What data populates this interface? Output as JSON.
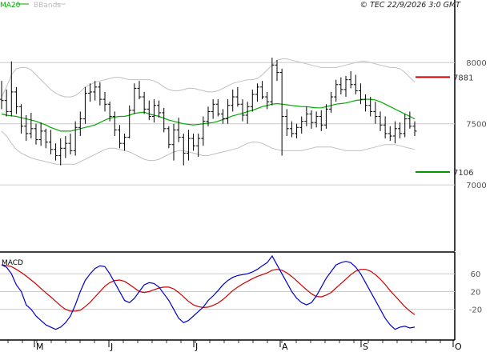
{
  "header": {
    "legend_ma": "MA20",
    "legend_bb": "BBands",
    "copyright": "© TEC 22/9/2026 3:0 GMT"
  },
  "colors": {
    "price_bars": "#000000",
    "ma20": "#00aa00",
    "bbands": "#c0c0c0",
    "macd": "#0000cc",
    "signal": "#cc0000",
    "resistance": "#cc0000",
    "support": "#009900",
    "grid": "#cccccc"
  },
  "chart_data": [
    {
      "type": "line",
      "subtype": "ohlc",
      "title": "",
      "y_ticks": [
        "8000",
        "7500",
        "7000"
      ],
      "ylim": [
        6550,
        8250
      ],
      "x_tick_labels": [
        "M",
        "J",
        "J",
        "A",
        "S",
        "O"
      ],
      "levels": [
        {
          "label": "7881",
          "value": 7881,
          "color": "#cc0000"
        },
        {
          "label": "7106",
          "value": 7106,
          "color": "#009900"
        }
      ],
      "ohlc": [
        [
          7700,
          7850,
          7620,
          7690
        ],
        [
          7690,
          7780,
          7560,
          7600
        ],
        [
          7600,
          8010,
          7560,
          7760
        ],
        [
          7760,
          7800,
          7580,
          7640
        ],
        [
          7640,
          7660,
          7420,
          7480
        ],
        [
          7480,
          7570,
          7360,
          7420
        ],
        [
          7420,
          7590,
          7380,
          7460
        ],
        [
          7460,
          7500,
          7330,
          7370
        ],
        [
          7370,
          7510,
          7320,
          7440
        ],
        [
          7440,
          7460,
          7300,
          7350
        ],
        [
          7350,
          7450,
          7250,
          7290
        ],
        [
          7290,
          7340,
          7200,
          7240
        ],
        [
          7240,
          7380,
          7160,
          7300
        ],
        [
          7300,
          7400,
          7220,
          7340
        ],
        [
          7340,
          7420,
          7250,
          7280
        ],
        [
          7280,
          7520,
          7240,
          7470
        ],
        [
          7470,
          7600,
          7400,
          7540
        ],
        [
          7540,
          7800,
          7500,
          7750
        ],
        [
          7750,
          7830,
          7680,
          7760
        ],
        [
          7760,
          7850,
          7690,
          7800
        ],
        [
          7800,
          7840,
          7650,
          7700
        ],
        [
          7700,
          7760,
          7600,
          7660
        ],
        [
          7660,
          7680,
          7520,
          7560
        ],
        [
          7560,
          7600,
          7400,
          7450
        ],
        [
          7450,
          7490,
          7300,
          7340
        ],
        [
          7340,
          7420,
          7280,
          7390
        ],
        [
          7390,
          7650,
          7380,
          7610
        ],
        [
          7610,
          7830,
          7580,
          7790
        ],
        [
          7790,
          7850,
          7700,
          7720
        ],
        [
          7720,
          7760,
          7580,
          7620
        ],
        [
          7620,
          7690,
          7530,
          7560
        ],
        [
          7560,
          7700,
          7510,
          7650
        ],
        [
          7650,
          7690,
          7550,
          7590
        ],
        [
          7590,
          7630,
          7430,
          7460
        ],
        [
          7460,
          7480,
          7300,
          7330
        ],
        [
          7330,
          7500,
          7200,
          7450
        ],
        [
          7450,
          7550,
          7350,
          7390
        ],
        [
          7390,
          7420,
          7160,
          7260
        ],
        [
          7260,
          7450,
          7200,
          7380
        ],
        [
          7380,
          7420,
          7280,
          7320
        ],
        [
          7320,
          7420,
          7230,
          7380
        ],
        [
          7380,
          7560,
          7320,
          7520
        ],
        [
          7520,
          7640,
          7480,
          7600
        ],
        [
          7600,
          7700,
          7540,
          7660
        ],
        [
          7660,
          7700,
          7560,
          7580
        ],
        [
          7580,
          7620,
          7500,
          7540
        ],
        [
          7540,
          7700,
          7500,
          7650
        ],
        [
          7650,
          7780,
          7600,
          7720
        ],
        [
          7720,
          7800,
          7640,
          7660
        ],
        [
          7660,
          7700,
          7520,
          7570
        ],
        [
          7570,
          7680,
          7500,
          7640
        ],
        [
          7640,
          7780,
          7600,
          7740
        ],
        [
          7740,
          7830,
          7680,
          7800
        ],
        [
          7800,
          7850,
          7700,
          7720
        ],
        [
          7720,
          7760,
          7620,
          7680
        ],
        [
          7680,
          8040,
          7650,
          7980
        ],
        [
          7980,
          8020,
          7850,
          7920
        ],
        [
          7920,
          7950,
          7240,
          7560
        ],
        [
          7560,
          7620,
          7400,
          7460
        ],
        [
          7460,
          7520,
          7390,
          7420
        ],
        [
          7420,
          7500,
          7380,
          7470
        ],
        [
          7470,
          7560,
          7420,
          7520
        ],
        [
          7520,
          7640,
          7480,
          7580
        ],
        [
          7580,
          7610,
          7460,
          7510
        ],
        [
          7510,
          7600,
          7470,
          7560
        ],
        [
          7560,
          7610,
          7440,
          7490
        ],
        [
          7490,
          7660,
          7460,
          7620
        ],
        [
          7620,
          7760,
          7590,
          7720
        ],
        [
          7720,
          7860,
          7680,
          7820
        ],
        [
          7820,
          7880,
          7740,
          7780
        ],
        [
          7780,
          7890,
          7720,
          7860
        ],
        [
          7860,
          7930,
          7790,
          7820
        ],
        [
          7820,
          7900,
          7740,
          7770
        ],
        [
          7770,
          7830,
          7660,
          7700
        ],
        [
          7700,
          7740,
          7600,
          7650
        ],
        [
          7650,
          7720,
          7560,
          7600
        ],
        [
          7600,
          7680,
          7500,
          7560
        ],
        [
          7560,
          7600,
          7440,
          7490
        ],
        [
          7490,
          7560,
          7380,
          7420
        ],
        [
          7420,
          7480,
          7360,
          7400
        ],
        [
          7400,
          7520,
          7340,
          7460
        ],
        [
          7460,
          7510,
          7380,
          7420
        ],
        [
          7420,
          7580,
          7390,
          7540
        ],
        [
          7540,
          7600,
          7460,
          7480
        ],
        [
          7480,
          7520,
          7400,
          7440
        ]
      ],
      "ma20": [
        7580,
        7570,
        7565,
        7560,
        7550,
        7540,
        7530,
        7520,
        7505,
        7490,
        7470,
        7455,
        7440,
        7440,
        7440,
        7450,
        7460,
        7470,
        7480,
        7490,
        7510,
        7530,
        7545,
        7555,
        7560,
        7560,
        7570,
        7585,
        7590,
        7595,
        7580,
        7570,
        7560,
        7545,
        7530,
        7520,
        7510,
        7500,
        7495,
        7490,
        7495,
        7500,
        7505,
        7510,
        7520,
        7535,
        7550,
        7565,
        7575,
        7585,
        7600,
        7610,
        7625,
        7640,
        7650,
        7660,
        7665,
        7660,
        7655,
        7650,
        7645,
        7640,
        7640,
        7635,
        7630,
        7630,
        7640,
        7650,
        7660,
        7665,
        7670,
        7680,
        7690,
        7695,
        7700,
        7700,
        7695,
        7680,
        7660,
        7640,
        7620,
        7600,
        7580,
        7560,
        7540
      ],
      "bb_upper": [
        7720,
        7800,
        7900,
        7950,
        7960,
        7960,
        7940,
        7900,
        7860,
        7820,
        7780,
        7750,
        7730,
        7720,
        7720,
        7730,
        7760,
        7800,
        7820,
        7840,
        7850,
        7860,
        7870,
        7880,
        7880,
        7870,
        7860,
        7860,
        7860,
        7860,
        7860,
        7850,
        7830,
        7800,
        7780,
        7770,
        7770,
        7780,
        7790,
        7790,
        7780,
        7770,
        7760,
        7760,
        7770,
        7790,
        7810,
        7830,
        7840,
        7850,
        7860,
        7860,
        7870,
        7900,
        7940,
        7980,
        8020,
        8030,
        8030,
        8020,
        8010,
        8000,
        7990,
        7980,
        7970,
        7960,
        7960,
        7960,
        7960,
        7970,
        7980,
        7990,
        8000,
        8010,
        8010,
        8000,
        7990,
        7980,
        7970,
        7960,
        7960,
        7950,
        7920,
        7880,
        7840
      ],
      "bb_lower": [
        7440,
        7400,
        7340,
        7290,
        7260,
        7240,
        7220,
        7210,
        7200,
        7190,
        7180,
        7170,
        7170,
        7170,
        7170,
        7170,
        7190,
        7210,
        7230,
        7250,
        7270,
        7290,
        7300,
        7300,
        7290,
        7280,
        7270,
        7250,
        7230,
        7210,
        7200,
        7200,
        7210,
        7230,
        7250,
        7270,
        7280,
        7280,
        7270,
        7260,
        7250,
        7240,
        7240,
        7250,
        7260,
        7270,
        7280,
        7290,
        7300,
        7320,
        7340,
        7350,
        7350,
        7340,
        7320,
        7300,
        7290,
        7280,
        7280,
        7280,
        7280,
        7280,
        7290,
        7300,
        7310,
        7310,
        7310,
        7310,
        7300,
        7290,
        7280,
        7280,
        7280,
        7280,
        7290,
        7300,
        7310,
        7320,
        7330,
        7330,
        7330,
        7320,
        7310,
        7300,
        7290
      ]
    },
    {
      "type": "line",
      "title": "MACD",
      "y_ticks": [
        "60",
        "20",
        "-20"
      ],
      "ylim": [
        -80,
        100
      ],
      "series": [
        {
          "values": [
            80,
            75,
            60,
            35,
            20,
            -10,
            -20,
            -35,
            -45,
            -55,
            -60,
            -65,
            -60,
            -50,
            -35,
            -10,
            20,
            45,
            60,
            72,
            78,
            76,
            60,
            40,
            20,
            0,
            -5,
            5,
            20,
            35,
            40,
            38,
            30,
            15,
            0,
            -20,
            -40,
            -50,
            -45,
            -35,
            -25,
            -15,
            0,
            10,
            22,
            35,
            45,
            52,
            56,
            58,
            60,
            64,
            70,
            78,
            85,
            100,
            80,
            60,
            40,
            20,
            5,
            -5,
            -10,
            -5,
            10,
            30,
            50,
            65,
            80,
            85,
            88,
            85,
            75,
            60,
            40,
            20,
            0,
            -20,
            -40,
            -55,
            -65,
            -60,
            -58,
            -62,
            -60
          ]
        },
        {
          "values": [
            80,
            79,
            76,
            70,
            63,
            55,
            46,
            37,
            27,
            17,
            8,
            -2,
            -12,
            -20,
            -24,
            -24,
            -22,
            -14,
            -4,
            8,
            20,
            32,
            40,
            45,
            46,
            43,
            36,
            28,
            20,
            18,
            20,
            24,
            28,
            30,
            30,
            26,
            18,
            8,
            -2,
            -10,
            -14,
            -16,
            -15,
            -11,
            -6,
            2,
            12,
            22,
            30,
            37,
            43,
            49,
            54,
            58,
            62,
            68,
            70,
            68,
            62,
            54,
            44,
            34,
            24,
            15,
            9,
            8,
            12,
            18,
            28,
            38,
            48,
            58,
            66,
            70,
            70,
            66,
            58,
            48,
            36,
            22,
            10,
            -2,
            -14,
            -24,
            -32
          ]
        }
      ]
    }
  ]
}
